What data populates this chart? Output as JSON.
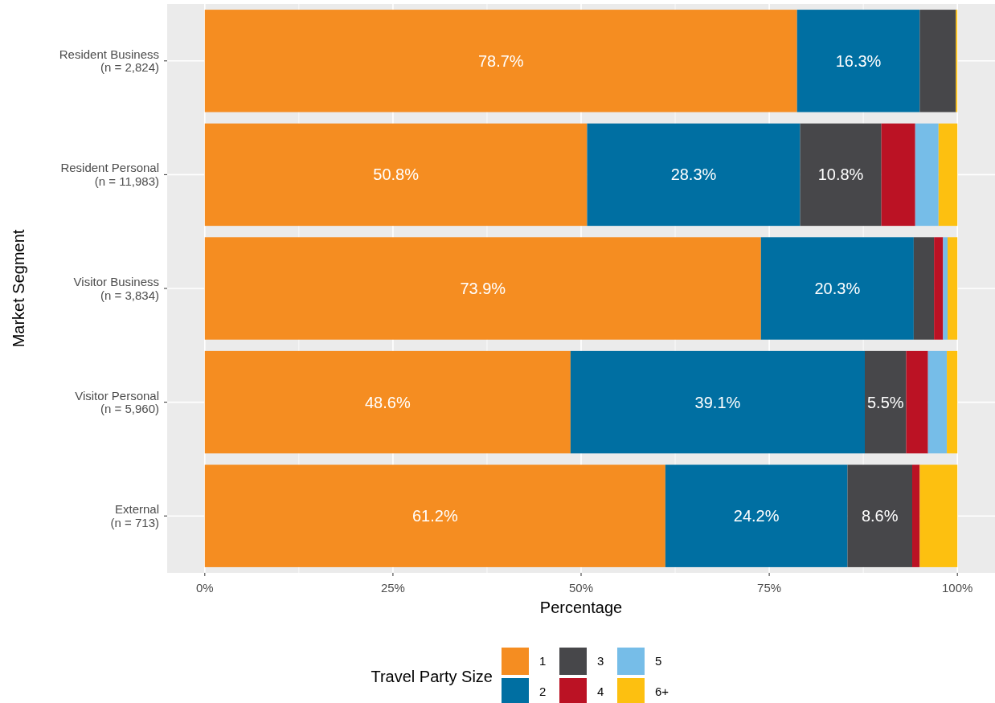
{
  "chart_data": {
    "type": "bar",
    "orientation": "horizontal",
    "stacked": true,
    "xlabel": "Percentage",
    "ylabel": "Market Segment",
    "legend_title": "Travel Party Size",
    "legend": "bottom",
    "grid": true,
    "categories": [
      "Resident Business\n(n = 2,824)",
      "Resident Personal\n(n = 11,983)",
      "Visitor Business\n(n = 3,834)",
      "Visitor Personal\n(n = 5,960)",
      "External\n(n = 713)"
    ],
    "xlim": [
      -5,
      105
    ],
    "xticks": [
      {
        "value": 0,
        "label": "0%"
      },
      {
        "value": 25,
        "label": "25%"
      },
      {
        "value": 50,
        "label": "50%"
      },
      {
        "value": 75,
        "label": "75%"
      },
      {
        "value": 100,
        "label": "100%"
      }
    ],
    "series": [
      {
        "name": "1",
        "color": "#f58d21",
        "values": [
          78.7,
          50.8,
          73.9,
          48.6,
          61.2
        ],
        "value_labels": [
          "78.7%",
          "50.8%",
          "73.9%",
          "48.6%",
          "61.2%"
        ]
      },
      {
        "name": "2",
        "color": "#006fa2",
        "values": [
          16.3,
          28.3,
          20.3,
          39.1,
          24.2
        ],
        "value_labels": [
          "16.3%",
          "28.3%",
          "20.3%",
          "39.1%",
          "24.2%"
        ]
      },
      {
        "name": "3",
        "color": "#47474a",
        "values": [
          4.8,
          10.8,
          2.7,
          5.5,
          8.6
        ],
        "value_labels": [
          null,
          "10.8%",
          null,
          "5.5%",
          "8.6%"
        ]
      },
      {
        "name": "4",
        "color": "#bb1224",
        "values": [
          0,
          4.5,
          1.2,
          2.9,
          1.0
        ]
      },
      {
        "name": "5",
        "color": "#76bde8",
        "values": [
          0,
          3.1,
          0.6,
          2.5,
          0
        ]
      },
      {
        "name": "6+",
        "color": "#fdc010",
        "values": [
          0.2,
          2.5,
          1.3,
          1.4,
          5.0
        ]
      }
    ]
  }
}
